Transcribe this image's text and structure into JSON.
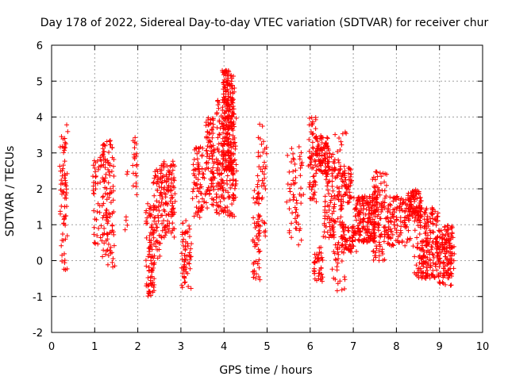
{
  "colors": {
    "series": "#ff0000",
    "grid": "#a0a0a0",
    "axis": "#000000"
  },
  "chart_data": {
    "type": "scatter",
    "title": "Day 178 of 2022, Sidereal Day-to-day VTEC variation (SDTVAR) for receiver chur",
    "xlabel": "GPS time / hours",
    "ylabel": "SDTVAR / TECUs",
    "xlim": [
      0,
      10
    ],
    "ylim": [
      -2,
      6
    ],
    "xticks": [
      0,
      1,
      2,
      3,
      4,
      5,
      6,
      7,
      8,
      9,
      10
    ],
    "yticks": [
      -2,
      -1,
      0,
      1,
      2,
      3,
      4,
      5,
      6
    ],
    "xtick_labels": [
      "0",
      "1",
      "2",
      "3",
      "4",
      "5",
      "6",
      "7",
      "8",
      "9",
      "10"
    ],
    "ytick_labels": [
      "-2",
      "-1",
      "0",
      "1",
      "2",
      "3",
      "4",
      "5",
      "6"
    ],
    "grid": true,
    "marker": "+",
    "series": [
      {
        "name": "SDTVAR",
        "clusters": [
          {
            "x": [
              0.18,
              0.38
            ],
            "y": [
              -0.3,
              3.8
            ],
            "n": 70
          },
          {
            "x": [
              0.95,
              1.2
            ],
            "y": [
              0.2,
              2.9
            ],
            "n": 45
          },
          {
            "x": [
              1.15,
              1.48
            ],
            "y": [
              -0.2,
              3.5
            ],
            "n": 110
          },
          {
            "x": [
              1.7,
              1.78
            ],
            "y": [
              0.8,
              2.6
            ],
            "n": 6
          },
          {
            "x": [
              1.88,
              2.0
            ],
            "y": [
              1.8,
              3.6
            ],
            "n": 20
          },
          {
            "x": [
              2.18,
              2.4
            ],
            "y": [
              -1.0,
              1.6
            ],
            "n": 90
          },
          {
            "x": [
              2.35,
              2.55
            ],
            "y": [
              0.0,
              2.6
            ],
            "n": 50
          },
          {
            "x": [
              2.5,
              2.9
            ],
            "y": [
              0.6,
              2.8
            ],
            "n": 120
          },
          {
            "x": [
              3.0,
              3.25
            ],
            "y": [
              -0.8,
              1.2
            ],
            "n": 60
          },
          {
            "x": [
              3.25,
              3.55
            ],
            "y": [
              1.2,
              3.2
            ],
            "n": 70
          },
          {
            "x": [
              3.55,
              3.8
            ],
            "y": [
              1.4,
              4.0
            ],
            "n": 90
          },
          {
            "x": [
              3.8,
              4.05
            ],
            "y": [
              1.3,
              4.5
            ],
            "n": 100
          },
          {
            "x": [
              3.95,
              4.25
            ],
            "y": [
              2.5,
              5.3
            ],
            "n": 200
          },
          {
            "x": [
              4.05,
              4.3
            ],
            "y": [
              1.2,
              4.0
            ],
            "n": 80
          },
          {
            "x": [
              4.65,
              4.85
            ],
            "y": [
              -0.6,
              2.0
            ],
            "n": 55
          },
          {
            "x": [
              4.75,
              5.0
            ],
            "y": [
              0.6,
              3.8
            ],
            "n": 45
          },
          {
            "x": [
              5.45,
              5.85
            ],
            "y": [
              0.4,
              3.4
            ],
            "n": 60
          },
          {
            "x": [
              5.95,
              6.15
            ],
            "y": [
              1.6,
              4.0
            ],
            "n": 60
          },
          {
            "x": [
              6.05,
              6.3
            ],
            "y": [
              -0.6,
              0.4
            ],
            "n": 40
          },
          {
            "x": [
              6.1,
              6.45
            ],
            "y": [
              2.4,
              3.5
            ],
            "n": 90
          },
          {
            "x": [
              6.3,
              6.6
            ],
            "y": [
              0.6,
              3.0
            ],
            "n": 80
          },
          {
            "x": [
              6.5,
              6.85
            ],
            "y": [
              -1.0,
              3.6
            ],
            "n": 80
          },
          {
            "x": [
              6.6,
              7.0
            ],
            "y": [
              1.6,
              2.6
            ],
            "n": 60
          },
          {
            "x": [
              6.7,
              7.1
            ],
            "y": [
              0.2,
              1.0
            ],
            "n": 60
          },
          {
            "x": [
              7.0,
              7.6
            ],
            "y": [
              0.5,
              1.8
            ],
            "n": 180
          },
          {
            "x": [
              7.4,
              7.9
            ],
            "y": [
              0.0,
              2.5
            ],
            "n": 120
          },
          {
            "x": [
              7.8,
              8.45
            ],
            "y": [
              0.4,
              1.8
            ],
            "n": 110
          },
          {
            "x": [
              8.25,
              8.6
            ],
            "y": [
              1.2,
              2.0
            ],
            "n": 70
          },
          {
            "x": [
              8.4,
              9.0
            ],
            "y": [
              -0.5,
              1.5
            ],
            "n": 190
          },
          {
            "x": [
              8.9,
              9.35
            ],
            "y": [
              -0.7,
              1.0
            ],
            "n": 150
          }
        ]
      }
    ]
  }
}
